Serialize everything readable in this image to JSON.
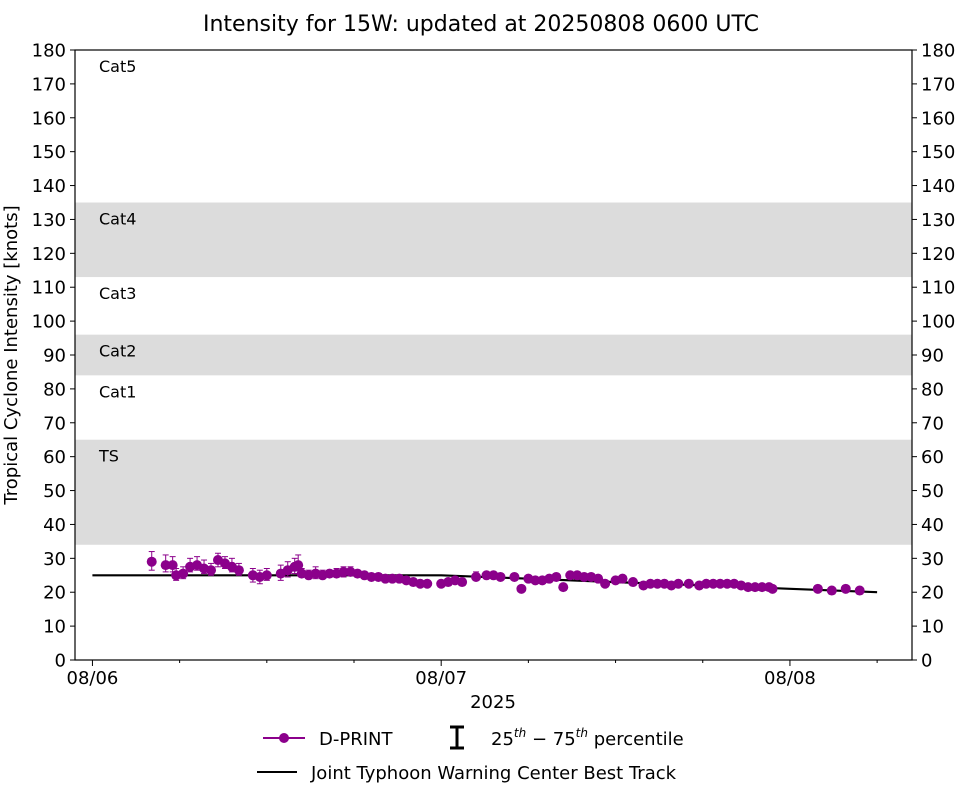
{
  "chart_data": {
    "type": "scatter",
    "title": "Intensity for 15W: updated at 20250808 0600 UTC",
    "ylabel": "Tropical Cyclone Intensity [knots]",
    "xlabel": "2025",
    "ylim": [
      0,
      180
    ],
    "yticks": [
      0,
      10,
      20,
      30,
      40,
      50,
      60,
      70,
      80,
      90,
      100,
      110,
      120,
      130,
      140,
      150,
      160,
      170,
      180
    ],
    "xlim": [
      -0.05,
      2.35
    ],
    "xticks": [
      {
        "value": 0,
        "label": "08/06"
      },
      {
        "value": 1,
        "label": "08/07"
      },
      {
        "value": 2,
        "label": "08/08"
      }
    ],
    "x_unit": "days after 2025-08-06 00 UTC",
    "minor_xticks": [
      0.25,
      0.5,
      0.75,
      1.25,
      1.5,
      1.75,
      2.25
    ],
    "category_bands": [
      {
        "label": "TS",
        "low": 34,
        "high": 65,
        "shaded": true
      },
      {
        "label": "Cat1",
        "low": 65,
        "high": 84,
        "shaded": false
      },
      {
        "label": "Cat2",
        "low": 84,
        "high": 96,
        "shaded": true
      },
      {
        "label": "Cat3",
        "low": 96,
        "high": 113,
        "shaded": false
      },
      {
        "label": "Cat4",
        "low": 113,
        "high": 135,
        "shaded": true
      },
      {
        "label": "Cat5",
        "low": 135,
        "high": 180,
        "shaded": false
      }
    ],
    "colors": {
      "band": "#dcdcdc",
      "dprint": "#8b008b",
      "best_track": "#000000"
    },
    "legend": {
      "placement": "bottom-center",
      "dprint_label": "D-PRINT",
      "percentile_label": "25th−75th percentile",
      "percentile_base": "25",
      "percentile_sup1": "th",
      "percentile_mid": " − 75",
      "percentile_sup2": "th",
      "percentile_suffix": " percentile",
      "best_track_label": "Joint Typhoon Warning Center Best Track"
    },
    "series": [
      {
        "name": "Joint Typhoon Warning Center Best Track",
        "style": "line",
        "x": [
          0,
          0.25,
          0.5,
          0.75,
          1.0,
          1.25,
          1.5,
          1.75,
          2.0,
          2.25
        ],
        "y": [
          25,
          25,
          25,
          25,
          25,
          24,
          23,
          22,
          21,
          20
        ]
      },
      {
        "name": "D-PRINT",
        "style": "points",
        "x": [
          0.17,
          0.21,
          0.23,
          0.24,
          0.26,
          0.28,
          0.3,
          0.32,
          0.34,
          0.36,
          0.38,
          0.4,
          0.42,
          0.46,
          0.48,
          0.5,
          0.54,
          0.56,
          0.58,
          0.59,
          0.6,
          0.62,
          0.64,
          0.66,
          0.68,
          0.7,
          0.72,
          0.74,
          0.76,
          0.78,
          0.8,
          0.82,
          0.84,
          0.86,
          0.88,
          0.9,
          0.92,
          0.94,
          0.96,
          1.0,
          1.02,
          1.04,
          1.06,
          1.1,
          1.13,
          1.15,
          1.17,
          1.21,
          1.23,
          1.25,
          1.27,
          1.29,
          1.31,
          1.33,
          1.35,
          1.37,
          1.39,
          1.41,
          1.43,
          1.45,
          1.47,
          1.5,
          1.52,
          1.55,
          1.58,
          1.6,
          1.62,
          1.64,
          1.66,
          1.68,
          1.71,
          1.74,
          1.76,
          1.78,
          1.8,
          1.82,
          1.84,
          1.86,
          1.88,
          1.9,
          1.92,
          1.94,
          1.95,
          2.08,
          2.12,
          2.16,
          2.2
        ],
        "y": [
          29,
          28,
          28,
          25,
          25.5,
          27.5,
          28,
          27,
          26.5,
          29.5,
          28.5,
          27.5,
          26.5,
          25,
          24.5,
          25,
          25.5,
          26.5,
          27.5,
          28,
          25.5,
          25,
          25.5,
          25,
          25.5,
          25.5,
          26,
          26,
          25.5,
          25,
          24.5,
          24.5,
          24,
          24,
          24,
          23.5,
          23,
          22.5,
          22.5,
          22.5,
          23,
          23.5,
          23,
          24.5,
          25,
          25,
          24.5,
          24.5,
          21,
          24,
          23.5,
          23.5,
          24,
          24.5,
          21.5,
          25,
          25,
          24.5,
          24.5,
          24,
          22.5,
          23.5,
          24,
          23,
          22,
          22.5,
          22.5,
          22.5,
          22,
          22.5,
          22.5,
          22,
          22.5,
          22.5,
          22.5,
          22.5,
          22.5,
          22,
          21.5,
          21.5,
          21.5,
          21.5,
          21,
          21,
          20.5,
          21,
          20.5
        ],
        "err_low": [
          26.5,
          26,
          26,
          23.5,
          24,
          26,
          26.5,
          25.5,
          25,
          27.5,
          27,
          26,
          25,
          23,
          22.5,
          23.5,
          23.5,
          24.5,
          25.5,
          25.5,
          24.5,
          24,
          24,
          24,
          24.5,
          24.5,
          24.5,
          25,
          24.5,
          24.5,
          24,
          24,
          23.5,
          23.5,
          23.5,
          23,
          22.5,
          22,
          22,
          21.5,
          22,
          22.5,
          22.5,
          24,
          24,
          24.5,
          24,
          23.5,
          20.5,
          23,
          23,
          23,
          23.5,
          24,
          21,
          24,
          24,
          24,
          24,
          23,
          22,
          23,
          23.5,
          22.5,
          21.5,
          22,
          22,
          22,
          21.5,
          22,
          22,
          21.5,
          22,
          22,
          22,
          22,
          22,
          21.5,
          21,
          21,
          21,
          21,
          20.5,
          20.5,
          20,
          20.5,
          20
        ],
        "err_high": [
          32,
          31,
          30.5,
          27,
          27.5,
          30,
          30.5,
          29.5,
          28.5,
          31.5,
          30.5,
          30,
          28.5,
          27,
          26.5,
          27,
          28,
          29,
          30,
          31,
          27,
          26.5,
          27.5,
          26.5,
          26.5,
          27,
          27.5,
          27.5,
          26.5,
          26,
          25.5,
          25.5,
          25,
          25,
          25,
          24.5,
          24,
          23.5,
          23.5,
          23.5,
          24,
          24.5,
          24,
          26,
          26,
          26,
          25.5,
          25.5,
          21.5,
          25,
          24.5,
          24.5,
          25,
          25.5,
          22,
          26,
          26,
          25.5,
          25.5,
          25,
          23.5,
          24.5,
          25,
          24,
          23,
          23.5,
          23.5,
          23.5,
          22.5,
          23,
          23.5,
          22.5,
          23,
          23.5,
          23.5,
          23.5,
          23,
          22.5,
          22,
          22,
          22,
          22,
          21.5,
          21.5,
          21,
          21.5,
          21
        ]
      }
    ]
  }
}
